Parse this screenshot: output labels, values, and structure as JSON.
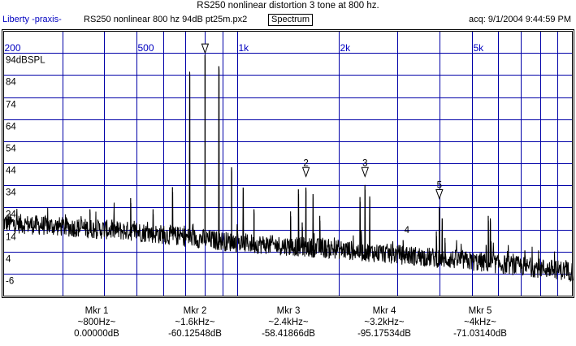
{
  "header": {
    "title": "RS250 nonlinear distortion 3 tone at 800 hz.",
    "brand": "Liberty -praxis-",
    "file": "RS250 nonlinear 800 hz 94dB pt25m.px2",
    "mode": "Spectrum",
    "acq": "acq: 9/1/2004 9:44:59 PM"
  },
  "colors": {
    "grid": "#0000a8",
    "freq_label": "#0000c0",
    "trace": "#000000",
    "frame": "#000000"
  },
  "chart_data": {
    "type": "line",
    "title": "RS250 nonlinear distortion 3 tone at 800 hz.",
    "xscale": "log",
    "xlim": [
      200,
      10000
    ],
    "ylim": [
      -16,
      104
    ],
    "ylabel": "94dBSPL",
    "x_ticks": [
      {
        "value": 200,
        "label": "200"
      },
      {
        "value": 300,
        "label": ""
      },
      {
        "value": 400,
        "label": ""
      },
      {
        "value": 500,
        "label": "500"
      },
      {
        "value": 600,
        "label": ""
      },
      {
        "value": 700,
        "label": ""
      },
      {
        "value": 800,
        "label": ""
      },
      {
        "value": 900,
        "label": ""
      },
      {
        "value": 1000,
        "label": "1k"
      },
      {
        "value": 2000,
        "label": "2k"
      },
      {
        "value": 3000,
        "label": ""
      },
      {
        "value": 4000,
        "label": ""
      },
      {
        "value": 5000,
        "label": "5k"
      },
      {
        "value": 6000,
        "label": ""
      },
      {
        "value": 7000,
        "label": ""
      },
      {
        "value": 8000,
        "label": ""
      },
      {
        "value": 9000,
        "label": ""
      }
    ],
    "y_ticks": [
      {
        "value": 94,
        "label": "94dBSPL"
      },
      {
        "value": 84,
        "label": "84"
      },
      {
        "value": 74,
        "label": "74"
      },
      {
        "value": 64,
        "label": "64"
      },
      {
        "value": 54,
        "label": "54"
      },
      {
        "value": 44,
        "label": "44"
      },
      {
        "value": 34,
        "label": "34"
      },
      {
        "value": 24,
        "label": "24"
      },
      {
        "value": 14,
        "label": "14"
      },
      {
        "value": 4,
        "label": "4"
      },
      {
        "value": -6,
        "label": "-6"
      }
    ],
    "grid": true,
    "noise_floor": [
      [
        200,
        17
      ],
      [
        500,
        13
      ],
      [
        1000,
        8
      ],
      [
        2000,
        5
      ],
      [
        4000,
        1
      ],
      [
        10000,
        -5
      ]
    ],
    "peaks": [
      [
        363,
        23
      ],
      [
        480,
        28
      ],
      [
        560,
        23
      ],
      [
        640,
        33
      ],
      [
        720,
        85.5
      ],
      [
        800,
        93
      ],
      [
        880,
        88
      ],
      [
        960,
        42
      ],
      [
        1040,
        33
      ],
      [
        1120,
        23
      ],
      [
        1440,
        22
      ],
      [
        1520,
        32
      ],
      [
        1560,
        17
      ],
      [
        1600,
        33
      ],
      [
        1680,
        30
      ],
      [
        1760,
        20
      ],
      [
        2320,
        28.5
      ],
      [
        2400,
        34
      ],
      [
        2480,
        29
      ],
      [
        3120,
        9
      ],
      [
        3200,
        6
      ],
      [
        3920,
        13
      ],
      [
        4000,
        24
      ],
      [
        4080,
        19
      ],
      [
        4160,
        10
      ],
      [
        5520,
        7
      ],
      [
        5600,
        20
      ],
      [
        5680,
        19
      ],
      [
        7200,
        4.5
      ]
    ],
    "markers": [
      {
        "id": "1",
        "freq": 800,
        "level": 94,
        "label": ""
      },
      {
        "id": "2",
        "freq": 1600,
        "level": 38,
        "label": "2"
      },
      {
        "id": "3",
        "freq": 2400,
        "level": 38,
        "label": "3"
      },
      {
        "id": "4",
        "freq": 3200,
        "level": 12,
        "label": "4",
        "label_only": true
      },
      {
        "id": "5",
        "freq": 4000,
        "level": 28,
        "label": "5"
      }
    ]
  },
  "markers": [
    {
      "name": "Mkr 1",
      "freq": "~800Hz~",
      "value": "0.00000dB"
    },
    {
      "name": "Mkr 2",
      "freq": "~1.6kHz~",
      "value": "-60.12548dB"
    },
    {
      "name": "Mkr 3",
      "freq": "~2.4kHz~",
      "value": "-58.41866dB"
    },
    {
      "name": "Mkr 4",
      "freq": "~3.2kHz~",
      "value": "-95.17534dB"
    },
    {
      "name": "Mkr 5",
      "freq": "~4kHz~",
      "value": "-71.03140dB"
    }
  ]
}
